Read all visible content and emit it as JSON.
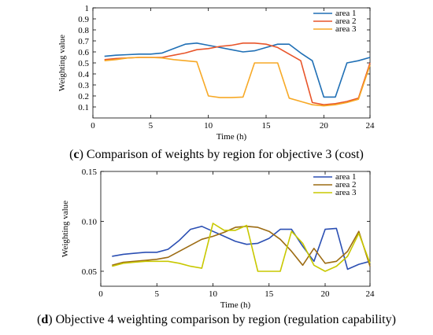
{
  "chart_data": [
    {
      "type": "line",
      "ylabel": "Weighting value",
      "xlabel": "Time (h)",
      "xlim": [
        0,
        24
      ],
      "ylim": [
        0,
        1
      ],
      "xticks": [
        "0",
        "5",
        "10",
        "15",
        "20",
        "24"
      ],
      "yticks": [
        "0.1",
        "0.2",
        "0.3",
        "0.4",
        "0.5",
        "0.6",
        "0.7",
        "0.8",
        "0.9",
        "1"
      ],
      "legend_position": "top-right",
      "x": [
        1,
        2,
        3,
        4,
        5,
        6,
        7,
        8,
        9,
        10,
        11,
        12,
        13,
        14,
        15,
        16,
        17,
        18,
        19,
        20,
        21,
        22,
        23,
        24
      ],
      "series": [
        {
          "name": "area 1",
          "color": "#1f6fb5",
          "values": [
            0.56,
            0.57,
            0.575,
            0.58,
            0.58,
            0.59,
            0.63,
            0.67,
            0.68,
            0.66,
            0.64,
            0.62,
            0.6,
            0.61,
            0.64,
            0.67,
            0.67,
            0.59,
            0.52,
            0.19,
            0.19,
            0.5,
            0.52,
            0.55
          ]
        },
        {
          "name": "area 2",
          "color": "#e8552a",
          "values": [
            0.53,
            0.54,
            0.545,
            0.55,
            0.55,
            0.55,
            0.57,
            0.59,
            0.62,
            0.63,
            0.65,
            0.66,
            0.68,
            0.68,
            0.67,
            0.64,
            0.58,
            0.52,
            0.14,
            0.12,
            0.13,
            0.15,
            0.18,
            0.5
          ]
        },
        {
          "name": "area 3",
          "color": "#f7a926",
          "values": [
            0.52,
            0.53,
            0.545,
            0.55,
            0.55,
            0.545,
            0.53,
            0.52,
            0.51,
            0.2,
            0.185,
            0.185,
            0.19,
            0.5,
            0.5,
            0.5,
            0.18,
            0.15,
            0.12,
            0.11,
            0.12,
            0.14,
            0.17,
            0.48
          ]
        }
      ],
      "caption_letter": "c",
      "caption_text": " Comparison of weights by region for objective 3 (cost)"
    },
    {
      "type": "line",
      "ylabel": "Weighting value",
      "xlabel": "Time (h)",
      "xlim": [
        0,
        24
      ],
      "ylim": [
        0.05,
        0.15
      ],
      "ydomain": [
        0.035,
        0.15
      ],
      "xticks": [
        "0",
        "5",
        "10",
        "15",
        "20",
        "24"
      ],
      "yticks": [
        "0.05",
        "0.10",
        "0.15"
      ],
      "legend_position": "top-right",
      "x": [
        1,
        2,
        3,
        4,
        5,
        6,
        7,
        8,
        9,
        10,
        11,
        12,
        13,
        14,
        15,
        16,
        17,
        18,
        19,
        20,
        21,
        22,
        23,
        24
      ],
      "series": [
        {
          "name": "area 1",
          "color": "#2b4fb3",
          "values": [
            0.065,
            0.067,
            0.068,
            0.069,
            0.069,
            0.072,
            0.081,
            0.092,
            0.095,
            0.09,
            0.085,
            0.08,
            0.077,
            0.078,
            0.083,
            0.092,
            0.092,
            0.075,
            0.06,
            0.092,
            0.093,
            0.052,
            0.057,
            0.06
          ]
        },
        {
          "name": "area 2",
          "color": "#9c6b12",
          "values": [
            0.056,
            0.059,
            0.06,
            0.061,
            0.062,
            0.064,
            0.07,
            0.076,
            0.082,
            0.085,
            0.089,
            0.094,
            0.095,
            0.094,
            0.09,
            0.082,
            0.07,
            0.056,
            0.073,
            0.058,
            0.06,
            0.07,
            0.09,
            0.055
          ]
        },
        {
          "name": "area 3",
          "color": "#c8c800",
          "values": [
            0.055,
            0.058,
            0.059,
            0.06,
            0.06,
            0.06,
            0.058,
            0.055,
            0.053,
            0.098,
            0.091,
            0.091,
            0.096,
            0.05,
            0.05,
            0.05,
            0.09,
            0.078,
            0.056,
            0.05,
            0.055,
            0.065,
            0.088,
            0.058
          ]
        }
      ],
      "caption_letter": "d",
      "caption_text": ") Objective 4 weighting comparison by region (regulation capability)"
    }
  ]
}
